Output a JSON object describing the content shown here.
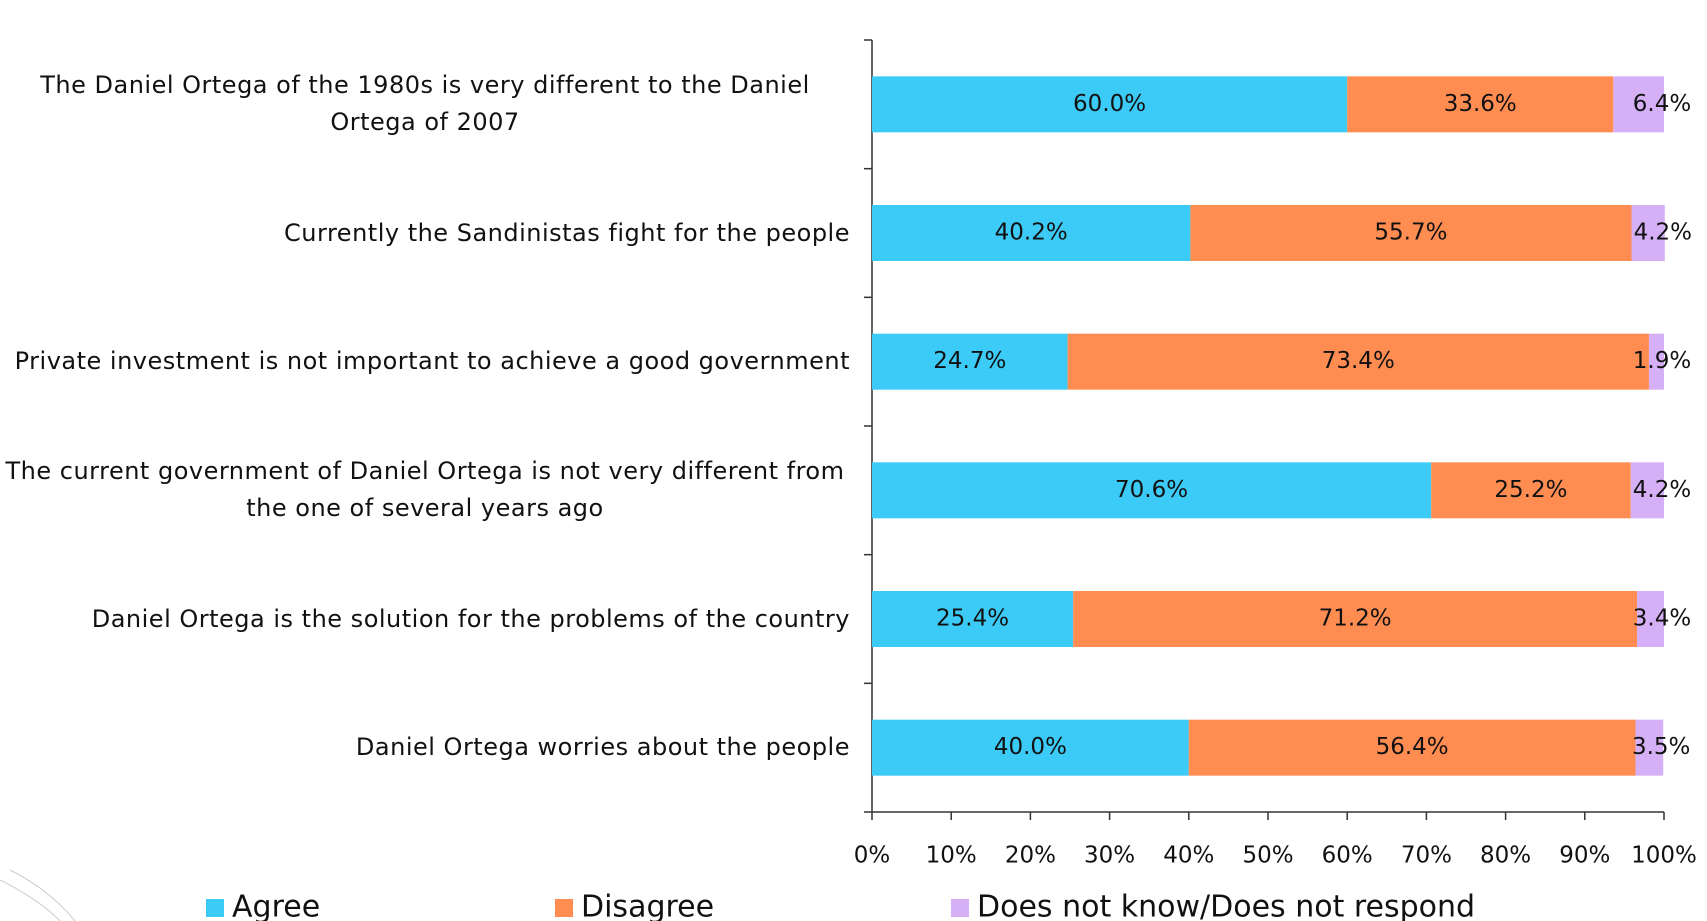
{
  "chart_data": {
    "type": "stacked-barh",
    "categories": [
      "The Daniel Ortega of the 1980s is very different to the Daniel Ortega of 2007",
      "Currently the Sandinistas fight for the people",
      "Private investment is not important to achieve a good government",
      "The current government of Daniel Ortega is not very different from the one of several years ago",
      "Daniel Ortega is the solution for the problems of the country",
      "Daniel Ortega worries about the people"
    ],
    "series": [
      {
        "name": "Agree",
        "color": "#3ccaf6",
        "values": [
          60.0,
          40.2,
          24.7,
          70.6,
          25.4,
          40.0
        ],
        "value_labels": [
          "60.0%",
          "40.2%",
          "24.7%",
          "70.6%",
          "25.4%",
          "40.0%"
        ]
      },
      {
        "name": "Disagree",
        "color": "#ff8d52",
        "values": [
          33.6,
          55.7,
          73.4,
          25.2,
          71.2,
          56.4
        ],
        "value_labels": [
          "33.6%",
          "55.7%",
          "73.4%",
          "25.2%",
          "71.2%",
          "56.4%"
        ]
      },
      {
        "name": "Does not know/Does not respond",
        "color": "#d6b0f7",
        "values": [
          6.4,
          4.2,
          1.9,
          4.2,
          3.4,
          3.5
        ],
        "value_labels": [
          "6.4%",
          "4.2%",
          "1.9%",
          "4.2%",
          "3.4%",
          "3.5%"
        ]
      }
    ],
    "xlim": [
      0,
      100
    ],
    "xticks": [
      {
        "value": 0,
        "label": "0%"
      },
      {
        "value": 10,
        "label": "10%"
      },
      {
        "value": 20,
        "label": "20%"
      },
      {
        "value": 30,
        "label": "30%"
      },
      {
        "value": 40,
        "label": "40%"
      },
      {
        "value": 50,
        "label": "50%"
      },
      {
        "value": 60,
        "label": "60%"
      },
      {
        "value": 70,
        "label": "70%"
      },
      {
        "value": 80,
        "label": "80%"
      },
      {
        "value": 90,
        "label": "90%"
      },
      {
        "value": 100,
        "label": "100%"
      }
    ],
    "legend": "bottom"
  }
}
